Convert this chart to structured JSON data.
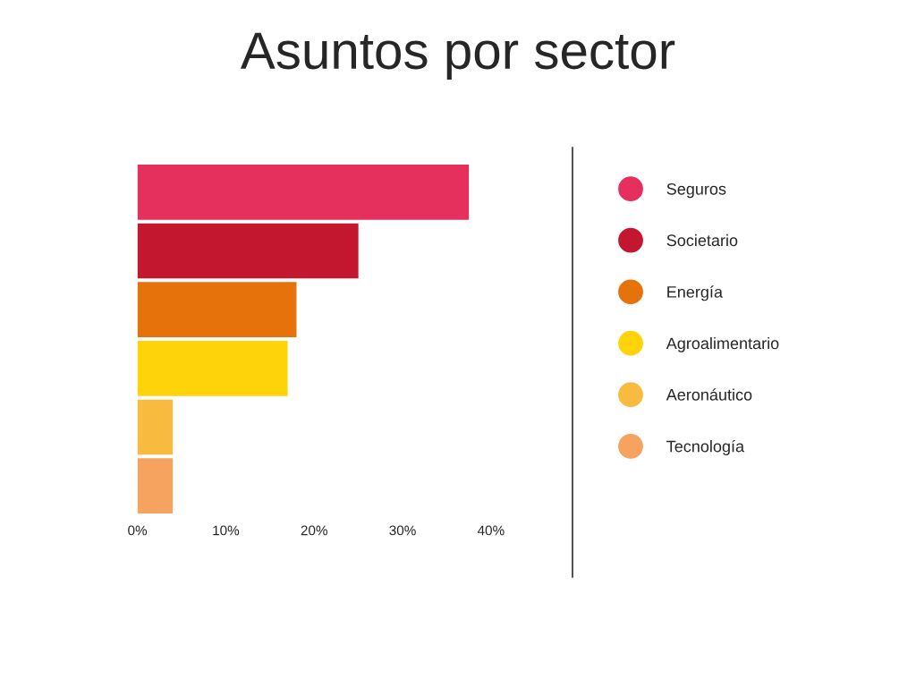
{
  "chart_data": {
    "type": "bar",
    "title": "Asuntos por sector",
    "orientation": "horizontal",
    "categories": [
      null
    ],
    "series": [
      {
        "name": "Seguros",
        "color": "#e5305e",
        "values": [
          37.5
        ]
      },
      {
        "name": "Societario",
        "color": "#c3172f",
        "values": [
          25
        ]
      },
      {
        "name": "Energía",
        "color": "#e5720b",
        "values": [
          18
        ]
      },
      {
        "name": "Agroalimentario",
        "color": "#ffd30a",
        "values": [
          17
        ]
      },
      {
        "name": "Aeronáutico",
        "color": "#f8bb40",
        "values": [
          4
        ]
      },
      {
        "name": "Tecnología",
        "color": "#f5a35e",
        "values": [
          4
        ]
      }
    ],
    "xlim": [
      0,
      40
    ],
    "xticks": [
      {
        "value": 0,
        "label": "0%"
      },
      {
        "value": 10,
        "label": "10%"
      },
      {
        "value": 20,
        "label": "20%"
      },
      {
        "value": 30,
        "label": "30%"
      },
      {
        "value": 40,
        "label": "40%"
      }
    ],
    "tick_labels": "x",
    "grid": false,
    "legend": "right"
  }
}
